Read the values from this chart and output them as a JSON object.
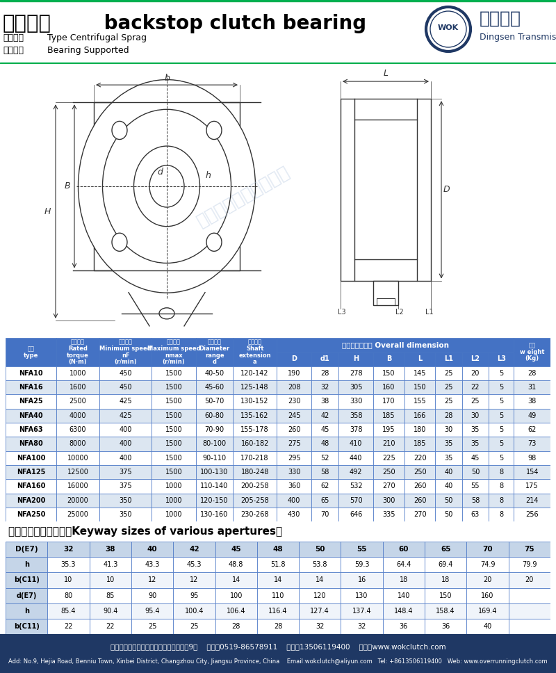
{
  "title_cn": "逆止轴承",
  "title_en": " backstop clutch bearing",
  "subtitle1_cn": "非接触式",
  "subtitle1_en": "  Type Centrifugal Sprag",
  "subtitle2_cn": "有轴承型",
  "subtitle2_en": "  Bearing Supported",
  "header_bg": "#4472C4",
  "row_even_color": "#FFFFFF",
  "row_odd_color": "#DCE6F1",
  "border_color": "#4472C4",
  "table_data": [
    [
      "NFA10",
      "1000",
      "450",
      "1500",
      "40-50",
      "120-142",
      "190",
      "28",
      "278",
      "150",
      "145",
      "25",
      "20",
      "5",
      "28"
    ],
    [
      "NFA16",
      "1600",
      "450",
      "1500",
      "45-60",
      "125-148",
      "208",
      "32",
      "305",
      "160",
      "150",
      "25",
      "22",
      "5",
      "31"
    ],
    [
      "NFA25",
      "2500",
      "425",
      "1500",
      "50-70",
      "130-152",
      "230",
      "38",
      "330",
      "170",
      "155",
      "25",
      "25",
      "5",
      "38"
    ],
    [
      "NFA40",
      "4000",
      "425",
      "1500",
      "60-80",
      "135-162",
      "245",
      "42",
      "358",
      "185",
      "166",
      "28",
      "30",
      "5",
      "49"
    ],
    [
      "NFA63",
      "6300",
      "400",
      "1500",
      "70-90",
      "155-178",
      "260",
      "45",
      "378",
      "195",
      "180",
      "30",
      "35",
      "5",
      "62"
    ],
    [
      "NFA80",
      "8000",
      "400",
      "1500",
      "80-100",
      "160-182",
      "275",
      "48",
      "410",
      "210",
      "185",
      "35",
      "35",
      "5",
      "73"
    ],
    [
      "NFA100",
      "10000",
      "400",
      "1500",
      "90-110",
      "170-218",
      "295",
      "52",
      "440",
      "225",
      "220",
      "35",
      "45",
      "5",
      "98"
    ],
    [
      "NFA125",
      "12500",
      "375",
      "1500",
      "100-130",
      "180-248",
      "330",
      "58",
      "492",
      "250",
      "250",
      "40",
      "50",
      "8",
      "154"
    ],
    [
      "NFA160",
      "16000",
      "375",
      "1000",
      "110-140",
      "200-258",
      "360",
      "62",
      "532",
      "270",
      "260",
      "40",
      "55",
      "8",
      "175"
    ],
    [
      "NFA200",
      "20000",
      "350",
      "1000",
      "120-150",
      "205-258",
      "400",
      "65",
      "570",
      "300",
      "260",
      "50",
      "58",
      "8",
      "214"
    ],
    [
      "NFA250",
      "25000",
      "350",
      "1000",
      "130-160",
      "230-268",
      "430",
      "70",
      "646",
      "335",
      "270",
      "50",
      "63",
      "8",
      "256"
    ]
  ],
  "keyway_headers": [
    "D(E7)",
    "32",
    "38",
    "40",
    "42",
    "45",
    "48",
    "50",
    "55",
    "60",
    "65",
    "70",
    "75"
  ],
  "keyway_data": [
    [
      "h",
      "35.3",
      "41.3",
      "43.3",
      "45.3",
      "48.8",
      "51.8",
      "53.8",
      "59.3",
      "64.4",
      "69.4",
      "74.9",
      "79.9"
    ],
    [
      "b(C11)",
      "10",
      "10",
      "12",
      "12",
      "14",
      "14",
      "14",
      "16",
      "18",
      "18",
      "20",
      "20"
    ],
    [
      "d(E7)",
      "80",
      "85",
      "90",
      "95",
      "100",
      "110",
      "120",
      "130",
      "140",
      "150",
      "160",
      ""
    ],
    [
      "h",
      "85.4",
      "90.4",
      "95.4",
      "100.4",
      "106.4",
      "116.4",
      "127.4",
      "137.4",
      "148.4",
      "158.4",
      "169.4",
      ""
    ],
    [
      "b(C11)",
      "22",
      "22",
      "25",
      "25",
      "28",
      "28",
      "32",
      "32",
      "36",
      "36",
      "40",
      ""
    ]
  ],
  "footer_bg": "#1F3864",
  "footer_text1": "地址：江苏省常州市新北区奔牛镇禾佳路9号    电话：0519-86578911    手机：13506119400    网址：www.wokclutch.com",
  "footer_text2": "Add: No.9, Hejia Road, Benniu Town, Xinbei District, Changzhou City, Jiangsu Province, China    Email:wokclutch@aliyun.com   Tel: +8613506119400   Web: www.overrunningclutch.com",
  "green_line_color": "#00B050",
  "logo_color": "#1F3864",
  "drawing_color": "#333333",
  "watermark_color": "#B0C4DE"
}
